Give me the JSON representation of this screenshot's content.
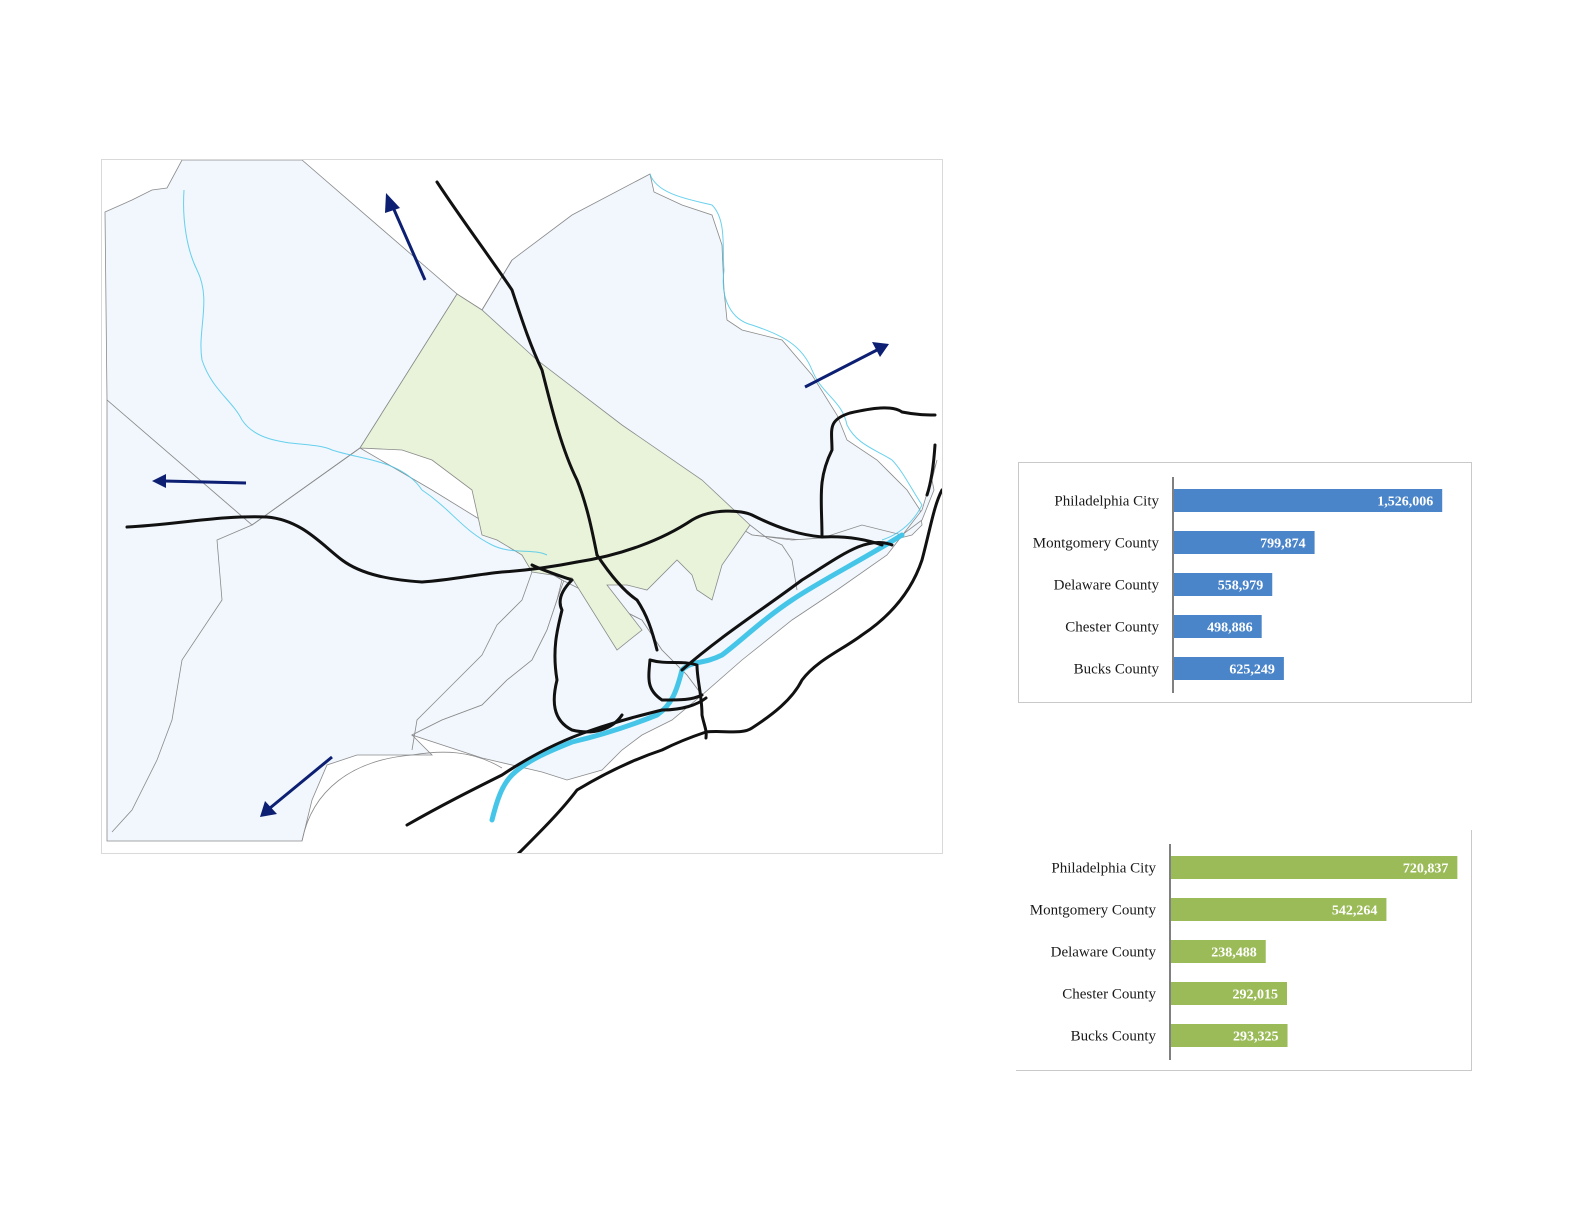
{
  "map": {
    "colors": {
      "region_fill": "#f1f7fd",
      "focus_fill": "#e8f3da",
      "boundary": "#8a8a8a",
      "highway": "#111111",
      "river": "#45c5e8",
      "arrow": "#0d1f72"
    },
    "arrow_directions": [
      "north",
      "northeast",
      "west",
      "southwest"
    ]
  },
  "chart_data": [
    {
      "type": "bar",
      "orientation": "horizontal",
      "color": "#4a84c9",
      "categories": [
        "Philadelphia City",
        "Montgomery County",
        "Delaware County",
        "Chester County",
        "Bucks County"
      ],
      "values": [
        1526006,
        799874,
        558979,
        498886,
        625249
      ],
      "value_labels": [
        "1,526,006",
        "799,874",
        "558,979",
        "498,886",
        "625,249"
      ],
      "xlim": [
        0,
        1650000
      ]
    },
    {
      "type": "bar",
      "orientation": "horizontal",
      "color": "#9bbb59",
      "categories": [
        "Philadelphia City",
        "Montgomery County",
        "Delaware County",
        "Chester County",
        "Bucks County"
      ],
      "values": [
        720837,
        542264,
        238488,
        292015,
        293325
      ],
      "value_labels": [
        "720,837",
        "542,264",
        "238,488",
        "292,015",
        "293,325"
      ],
      "xlim": [
        0,
        730000
      ]
    }
  ]
}
